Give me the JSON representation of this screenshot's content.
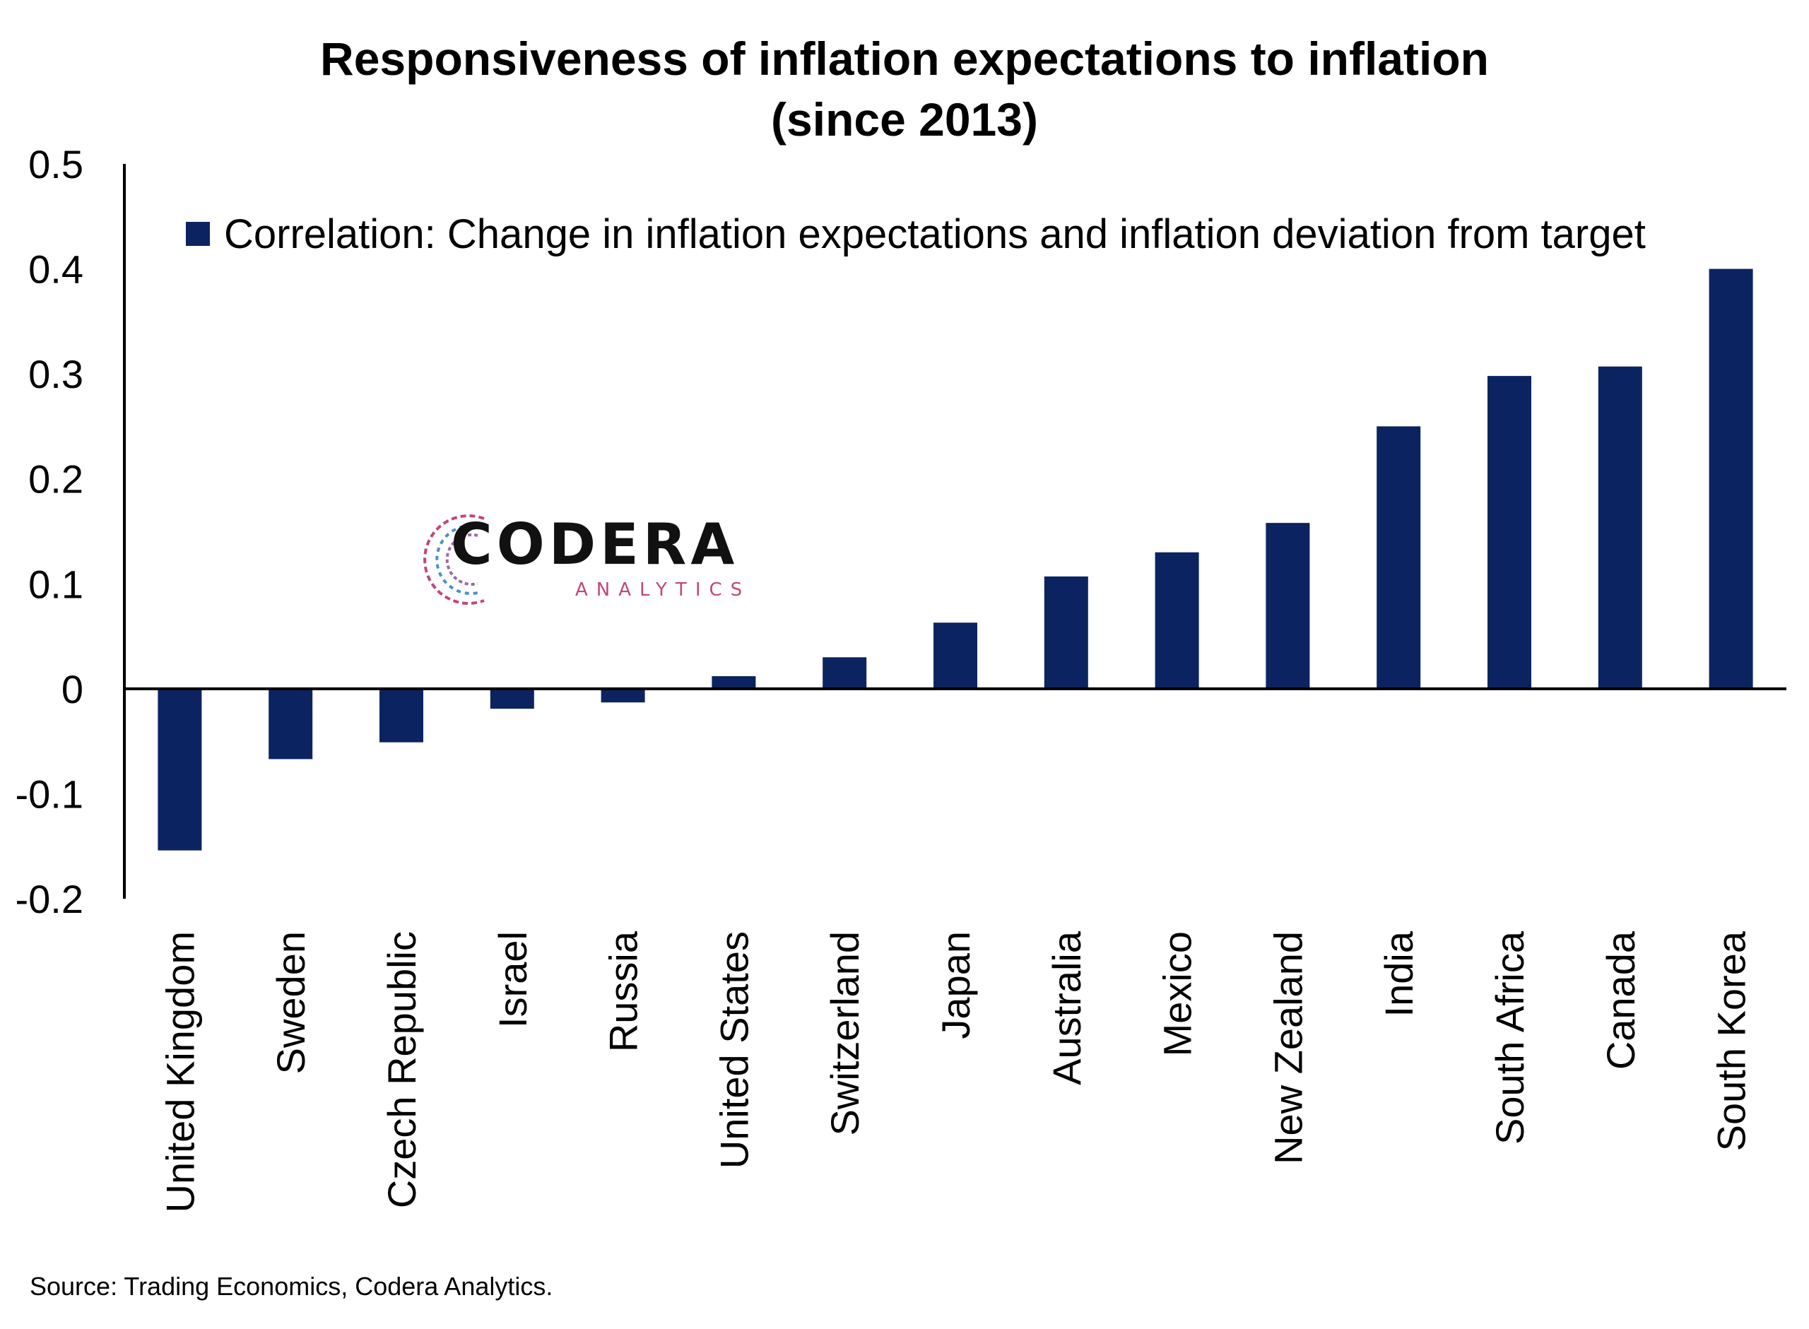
{
  "title_line1": "Responsiveness of inflation expectations to inflation",
  "title_line2": "(since 2013)",
  "source": "Source: Trading Economics, Codera Analytics.",
  "logo": {
    "name": "CODERA",
    "sub": "ANALYTICS"
  },
  "colors": {
    "bar": "#0b2461",
    "axis": "#000000",
    "logo_pink": "#c0477a",
    "logo_blue": "#4a90c8"
  },
  "chart_data": {
    "type": "bar",
    "title": "Responsiveness of inflation expectations to inflation (since 2013)",
    "categories": [
      "United Kingdom",
      "Sweden",
      "Czech Republic",
      "Israel",
      "Russia",
      "United States",
      "Switzerland",
      "Japan",
      "Australia",
      "Mexico",
      "New Zealand",
      "India",
      "South Africa",
      "Canada",
      "South Korea"
    ],
    "series": [
      {
        "name": "Correlation: Change in inflation expectations and inflation deviation from target",
        "values": [
          -0.154,
          -0.067,
          -0.051,
          -0.019,
          -0.013,
          0.012,
          0.03,
          0.063,
          0.107,
          0.13,
          0.158,
          0.25,
          0.298,
          0.307,
          0.4
        ]
      }
    ],
    "ylim": [
      -0.2,
      0.5
    ],
    "yticks": [
      0.5,
      0.4,
      0.3,
      0.2,
      0.1,
      0,
      -0.1,
      -0.2
    ],
    "ytick_labels": [
      "0.5",
      "0.4",
      "0.3",
      "0.2",
      "0.1",
      "0",
      "-0.1",
      "-0.2"
    ],
    "legend": "top-right",
    "grid": false,
    "xlabel": "",
    "ylabel": ""
  }
}
